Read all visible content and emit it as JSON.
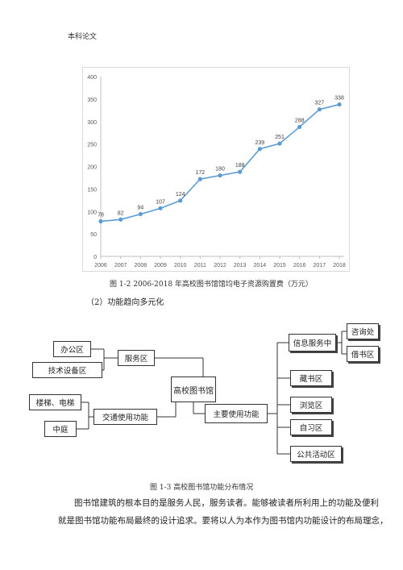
{
  "header": {
    "text": "本科论文"
  },
  "chart_data": {
    "type": "line",
    "categories": [
      "2006",
      "2007",
      "2008",
      "2009",
      "2010",
      "2011",
      "2012",
      "2013",
      "2014",
      "2015",
      "2016",
      "2017",
      "2018"
    ],
    "series": [
      {
        "values": [
          78,
          82,
          94,
          107,
          124,
          172,
          180,
          188,
          239,
          251,
          288,
          327,
          338
        ]
      }
    ],
    "yticks": [
      "0",
      "50",
      "100",
      "150",
      "200",
      "250",
      "300",
      "350",
      "400"
    ],
    "ylim": [
      0,
      400
    ],
    "grid": false,
    "color": "#5b9bd5"
  },
  "caption1": "图 1-2 2006-2018 年高校图书馆馆均电子资源购置费（万元）",
  "section": "（2）功能趋向多元化",
  "diagram": {
    "root": "高校图书馆",
    "service": "服务区",
    "office": "办公区",
    "tech": "技术设备区",
    "traffic": "交通使用功能",
    "stairs": "楼梯、电梯",
    "atrium": "中庭",
    "main": "主要使用功能",
    "info": "信息服务中",
    "consult": "咨询处",
    "lend": "借书区",
    "stack": "藏书区",
    "browse": "浏览区",
    "study": "自习区",
    "public": "公共活动区"
  },
  "caption2": "图 1-3  高校图书馆功能分布情况",
  "paragraph": {
    "line1": "图书馆建筑的根本目的是服务人民，服务读者。能够被读者所利用上的功能及便利",
    "line2": "就是图书馆功能布局最终的设计追求。要将以人为本作为图书馆内功能设计的布局理念，"
  }
}
